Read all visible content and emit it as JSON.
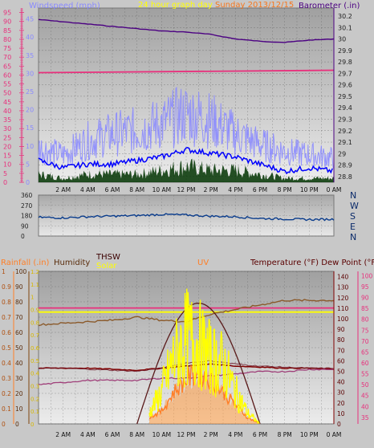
{
  "colors": {
    "wind_title": "#8a8aff",
    "header_title": "#ffff00",
    "header_date": "#ff6a00",
    "baro_title": "#4b0082",
    "rain_title": "#ff7f27",
    "humidity_title": "#5a2d0c",
    "thsw_title": "#3a0000",
    "solar_title": "#ffff00",
    "uv_title": "#ff7f27",
    "temp_title": "#5a0000",
    "pink": "#e8307c",
    "gust": "#8a8aff",
    "wind": "#0000ff",
    "windlow": "#003300",
    "baro": "#4b0082",
    "dir": "#0a3c8c",
    "humidity": "#8b5a2b",
    "thsw": "#5a0000",
    "solar": "#ffff00",
    "uv": "#ff7f27",
    "temp": "#800000",
    "dew": "#a0407a",
    "solar_curve": "#5a1a1a",
    "solar_line": "#ffff00"
  },
  "header": {
    "wind_title": "Windspeed (mph)",
    "graph_title": "24 hour graph day",
    "date_partial": "Sunday 2013/12/15",
    "baro_title": "Barometer (.in)"
  },
  "panel3": {
    "rain_title": "Rainfall (.in)",
    "humidity_title": "Humidity",
    "thsw_title": "THSW",
    "solar_title": "Solar",
    "uv_title": "UV",
    "temp_title": "Temperature (°F) Dew Point (°F)"
  },
  "x_ticks": [
    "2 AM",
    "4 AM",
    "6 AM",
    "8 AM",
    "10 AM",
    "12 PM",
    "2 PM",
    "4 PM",
    "6 PM",
    "8 PM",
    "10 PM",
    "0 AM"
  ],
  "chart_data": [
    {
      "type": "line",
      "title": "Windspeed (mph) / Barometer (.in)",
      "xlabel": "",
      "x_range_hours": [
        0,
        24
      ],
      "left_axis": {
        "label": "Windspeed (mph)",
        "ticks": [
          "0",
          "5",
          "10",
          "15",
          "20",
          "25",
          "30",
          "35",
          "40",
          "45",
          "50",
          "55",
          "60",
          "65",
          "70",
          "75",
          "80",
          "85",
          "90",
          "95"
        ],
        "ylim": [
          0,
          97.5
        ]
      },
      "left_axis_top": [
        {
          "label": "75",
          "pos": 20
        },
        {
          "label": "5",
          "pos": 175
        }
      ],
      "inner_left_axis": {
        "ticks": [
          "0",
          "5",
          "10",
          "15",
          "20",
          "25",
          "30",
          "35",
          "40",
          "45"
        ],
        "ylim": [
          0,
          48
        ]
      },
      "right_axis": {
        "label": "Barometer (.in)",
        "ticks": [
          "28.8",
          "28.9",
          "29",
          "29.1",
          "29.2",
          "29.3",
          "29.4",
          "29.5",
          "29.6",
          "29.7",
          "29.8",
          "29.9",
          "30",
          "30.1",
          "30.2"
        ],
        "ylim": [
          28.75,
          30.27
        ]
      },
      "grid": true,
      "series": [
        {
          "name": "Barometer",
          "axis": "right",
          "x": [
            0,
            2,
            4,
            6,
            8,
            10,
            12,
            14,
            16,
            18,
            20,
            22,
            24
          ],
          "values": [
            30.17,
            30.15,
            30.13,
            30.11,
            30.09,
            30.07,
            30.06,
            30.04,
            30.0,
            29.98,
            29.97,
            29.99,
            30.0
          ]
        },
        {
          "name": "Wind gust",
          "axis": "inner_left",
          "x": [
            0,
            2,
            4,
            6,
            8,
            10,
            12,
            14,
            16,
            18,
            20,
            22,
            24
          ],
          "values": [
            10,
            8,
            12,
            14,
            15,
            17,
            20,
            18,
            14,
            11,
            9,
            8,
            7
          ]
        },
        {
          "name": "Wind speed",
          "axis": "inner_left",
          "x": [
            0,
            2,
            4,
            6,
            8,
            10,
            12,
            14,
            16,
            18,
            20,
            22,
            24
          ],
          "values": [
            6,
            4,
            5,
            5,
            6,
            7,
            9,
            8,
            7,
            5,
            3,
            4,
            3
          ]
        },
        {
          "name": "Wind low",
          "axis": "inner_left",
          "x": [
            0,
            2,
            4,
            6,
            8,
            10,
            12,
            14,
            16,
            18,
            20,
            22,
            24
          ],
          "values": [
            2,
            1,
            2,
            2,
            2,
            3,
            4,
            3,
            3,
            2,
            1,
            1,
            1
          ]
        }
      ],
      "reference_line_pink": 30
    },
    {
      "type": "line",
      "title": "Wind direction",
      "x_range_hours": [
        0,
        24
      ],
      "left_axis": {
        "ticks": [
          "0",
          "90",
          "180",
          "270",
          "360"
        ],
        "ylim": [
          0,
          360
        ]
      },
      "right_axis": {
        "ticks": [
          "N",
          "W",
          "S",
          "E",
          "N"
        ]
      },
      "series": [
        {
          "name": "Direction",
          "x": [
            0,
            2,
            4,
            6,
            8,
            10,
            12,
            14,
            16,
            18,
            20,
            22,
            24
          ],
          "values": [
            165,
            160,
            170,
            175,
            180,
            190,
            185,
            175,
            170,
            155,
            150,
            145,
            148
          ]
        }
      ]
    },
    {
      "type": "line",
      "title": "Rainfall / Humidity / THSW / Solar / UV / Temperature / Dew Point",
      "x_range_hours": [
        0,
        24
      ],
      "axes": {
        "rainfall": {
          "label": "Rainfall (.in)",
          "ticks": [
            "0",
            "0.1",
            "0.2",
            "0.3",
            "0.4",
            "0.5",
            "0.6",
            "0.7",
            "0.8",
            "0.9",
            "1"
          ],
          "ylim": [
            0,
            1
          ]
        },
        "humidity": {
          "label": "Humidity",
          "ticks": [
            "0",
            "10",
            "20",
            "30",
            "40",
            "50",
            "60",
            "70",
            "80",
            "90",
            "100"
          ],
          "ylim": [
            0,
            100
          ]
        },
        "uv": {
          "ticks": [
            "0",
            "0.1",
            "0.2",
            "0.3",
            "0.4",
            "0.5",
            "0.6",
            "0.7",
            "0.8",
            "0.9",
            "1",
            "1.1",
            "1.2"
          ],
          "ylim": [
            0,
            1.2
          ]
        },
        "temperature": {
          "label": "Temperature (°F)",
          "ticks": [
            "0",
            "10",
            "20",
            "30",
            "40",
            "50",
            "60",
            "70",
            "80",
            "90",
            "100",
            "110",
            "120",
            "130",
            "140"
          ],
          "ylim": [
            0,
            145
          ]
        },
        "dew_point": {
          "ticks": [
            "35",
            "40",
            "45",
            "50",
            "55",
            "60",
            "65",
            "70",
            "75",
            "80",
            "85",
            "90",
            "95",
            "100"
          ],
          "ylim": [
            32,
            102
          ]
        }
      },
      "series": [
        {
          "name": "Humidity",
          "axis": "humidity",
          "x": [
            0,
            2,
            4,
            6,
            8,
            10,
            12,
            14,
            16,
            18,
            20,
            22,
            24
          ],
          "values": [
            65,
            66,
            67,
            68,
            70,
            68,
            67,
            72,
            75,
            78,
            81,
            81,
            81
          ]
        },
        {
          "name": "Temperature",
          "axis": "temperature",
          "x": [
            0,
            2,
            4,
            6,
            8,
            10,
            12,
            14,
            16,
            18,
            20,
            22,
            24
          ],
          "values": [
            53,
            53,
            53,
            52,
            51,
            53,
            55,
            57,
            55,
            54,
            53,
            53,
            52
          ]
        },
        {
          "name": "THSW",
          "axis": "temperature",
          "x": [
            0,
            2,
            4,
            6,
            8,
            10,
            12,
            14,
            16,
            18,
            20,
            22,
            24
          ],
          "values": [
            53,
            53,
            52,
            51,
            50,
            53,
            58,
            60,
            57,
            55,
            54,
            53,
            53
          ]
        },
        {
          "name": "Dew Point",
          "axis": "dew_point",
          "x": [
            0,
            2,
            4,
            6,
            8,
            10,
            12,
            14,
            16,
            18,
            20,
            22,
            24
          ],
          "values": [
            50,
            51,
            52,
            52,
            52,
            53,
            53,
            54,
            55,
            56,
            56,
            57,
            57
          ]
        },
        {
          "name": "Solar (measured)",
          "axis": "uv",
          "x": [
            9,
            10,
            11,
            12,
            13,
            14,
            15,
            16,
            17,
            18
          ],
          "values": [
            0.1,
            0.3,
            0.6,
            0.8,
            0.75,
            0.6,
            0.55,
            0.3,
            0.1,
            0.0
          ]
        },
        {
          "name": "UV",
          "axis": "uv",
          "x": [
            9,
            10,
            11,
            12,
            13,
            14,
            15,
            16,
            17,
            18
          ],
          "values": [
            0.05,
            0.1,
            0.25,
            0.35,
            0.4,
            0.35,
            0.25,
            0.15,
            0.05,
            0.0
          ]
        },
        {
          "name": "Solar (theoretical)",
          "axis": "uv",
          "x": [
            8,
            10,
            12,
            14,
            16,
            18
          ],
          "values": [
            0.0,
            0.5,
            0.9,
            0.95,
            0.6,
            0.0
          ]
        }
      ],
      "reference_lines": [
        {
          "name": "pink",
          "axis": "humidity",
          "value": 76
        },
        {
          "name": "yellow",
          "axis": "uv",
          "value": 0.88
        }
      ]
    }
  ]
}
